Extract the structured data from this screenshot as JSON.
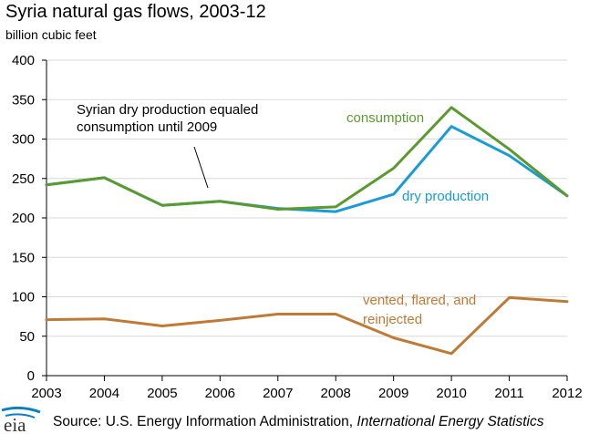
{
  "chart_data": {
    "type": "line",
    "title": "Syria natural gas flows, 2003-12",
    "subtitle": "billion cubic feet",
    "xlabel": "",
    "ylabel": "",
    "x": [
      2003,
      2004,
      2005,
      2006,
      2007,
      2008,
      2009,
      2010,
      2011,
      2012
    ],
    "ylim": [
      0,
      400
    ],
    "yticks": [
      0,
      50,
      100,
      150,
      200,
      250,
      300,
      350,
      400
    ],
    "grid": true,
    "series": [
      {
        "name": "dry production",
        "color": "#1a9bd7",
        "values": [
          242,
          251,
          216,
          221,
          212,
          208,
          230,
          316,
          279,
          228
        ]
      },
      {
        "name": "consumption",
        "color": "#5b9a30",
        "values": [
          242,
          251,
          216,
          221,
          211,
          214,
          263,
          340,
          287,
          228
        ]
      },
      {
        "name": "vented, flared, and reinjected",
        "color": "#c07a35",
        "values": [
          71,
          72,
          63,
          70,
          78,
          78,
          48,
          28,
          99,
          94
        ]
      }
    ],
    "annotations": {
      "note_line1": "Syrian dry production equaled",
      "note_line2": "consumption until 2009",
      "consumption_label": "consumption",
      "production_label": "dry production",
      "vented_line1": "vented, flared, and",
      "vented_line2": "reinjected"
    }
  },
  "footer": {
    "logo_text": "eia",
    "source_prefix": "Source: U.S. Energy Information Administration,",
    "source_italic": "International Energy Statistics"
  }
}
